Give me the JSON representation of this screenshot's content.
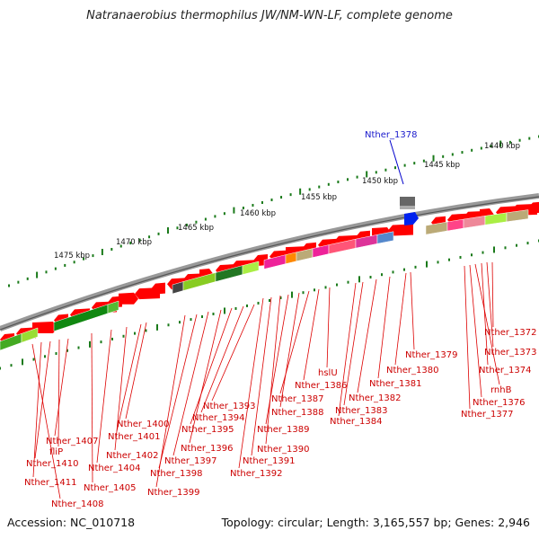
{
  "title": "Natranaerobius thermophilus JW/NM-WN-LF, complete genome",
  "footer": {
    "accession": "Accession: NC_010718",
    "summary": "Topology: circular; Length: 3,165,557 bp; Genes: 2,946"
  },
  "scale_labels": [
    "1440 kbp",
    "1445 kbp",
    "1450 kbp",
    "1455 kbp",
    "1460 kbp",
    "1465 kbp",
    "1470 kbp",
    "1475 kbp"
  ],
  "highlight_label": "Nther_1378",
  "gene_labels": [
    "Nther_1372",
    "Nther_1373",
    "Nther_1374",
    "rnhB",
    "Nther_1376",
    "Nther_1377",
    "Nther_1379",
    "Nther_1380",
    "Nther_1381",
    "Nther_1382",
    "Nther_1383",
    "Nther_1384",
    "hslU",
    "Nther_1386",
    "Nther_1387",
    "Nther_1388",
    "Nther_1389",
    "Nther_1390",
    "Nther_1391",
    "Nther_1392",
    "Nther_1393",
    "Nther_1394",
    "Nther_1395",
    "Nther_1396",
    "Nther_1397",
    "Nther_1398",
    "Nther_1399",
    "Nther_1400",
    "Nther_1401",
    "Nther_1402",
    "Nther_1404",
    "Nther_1405",
    "Nther_1407",
    "fliP",
    "Nther_1410",
    "Nther_1411",
    "Nther_1408"
  ],
  "colors": {
    "gene_forward": "#ff0000",
    "highlight": "#0022ee",
    "backbone": "#888888",
    "tick": "#1a7a1a",
    "label": "#cc0000",
    "label_line": "#dd0000",
    "highlight_line": "#0000cc"
  }
}
